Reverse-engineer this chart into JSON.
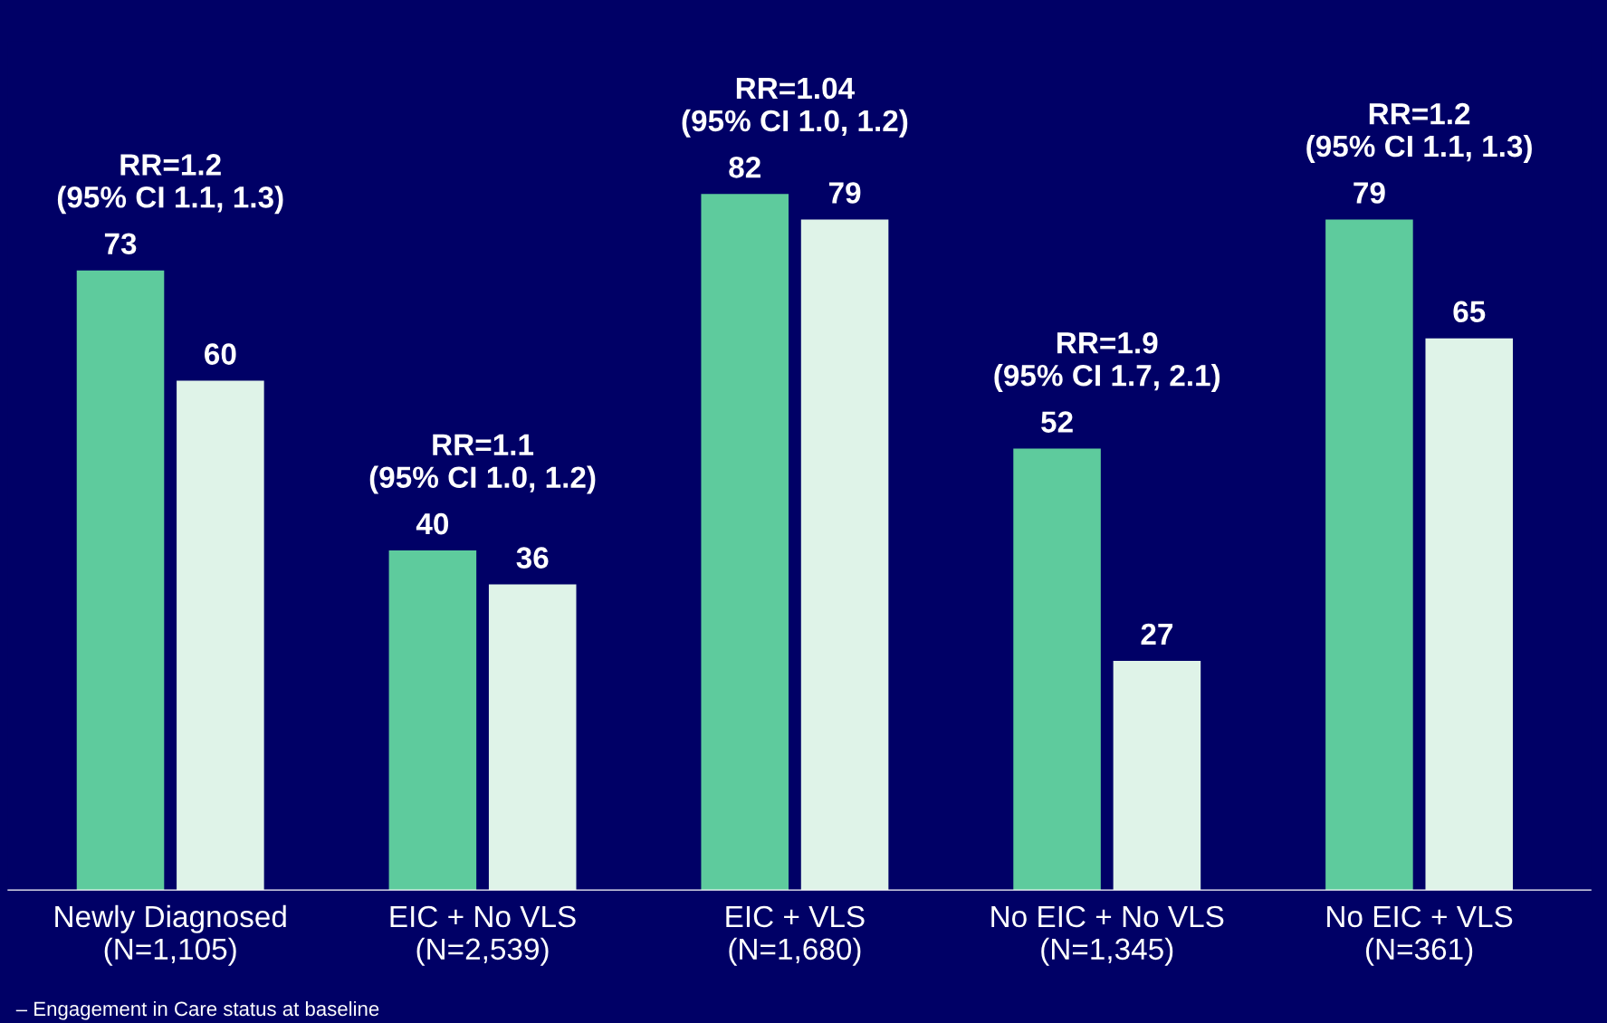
{
  "chart_data": {
    "type": "bar",
    "categories": [
      "Newly Diagnosed\n(N=1,105)",
      "EIC + No VLS\n(N=2,539)",
      "EIC + VLS\n(N=1,680)",
      "No EIC + No VLS\n(N=1,345)",
      "No EIC + VLS\n(N=361)"
    ],
    "series": [
      {
        "color": "#5ecb9d",
        "values": [
          73,
          40,
          82,
          52,
          79
        ]
      },
      {
        "color": "#dff3e8",
        "values": [
          60,
          36,
          79,
          27,
          65
        ]
      }
    ],
    "data_labels": true,
    "grid": false,
    "annotations": [
      "RR=1.2\n(95% CI 1.1, 1.3)",
      "RR=1.1\n(95% CI 1.0, 1.2)",
      "RR=1.04\n(95% CI 1.0, 1.2)",
      "RR=1.9\n(95% CI 1.7, 2.1)",
      "RR=1.2\n(95% CI 1.1, 1.3)",
      "– Engagement in Care status at baseline"
    ]
  }
}
